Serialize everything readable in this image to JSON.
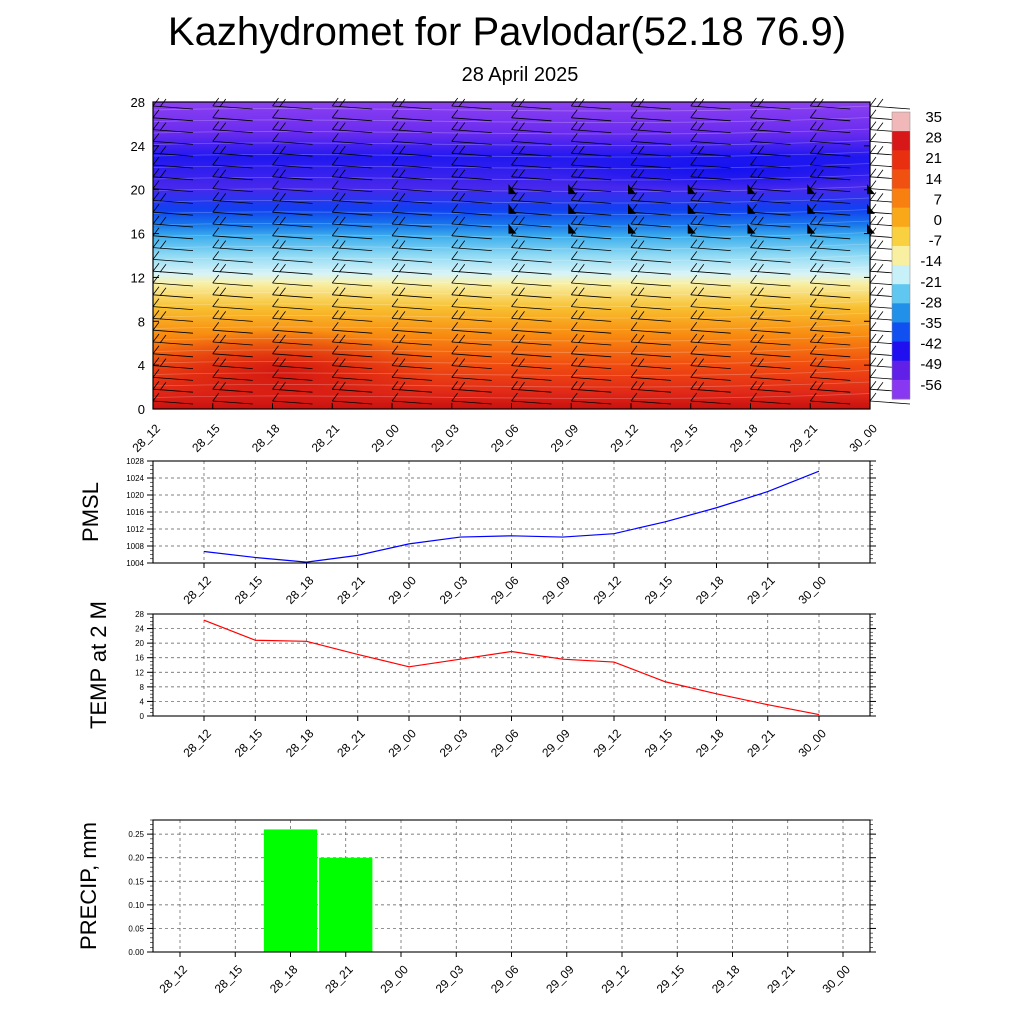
{
  "title": "Kazhydromet for Pavlodar(52.18 76.9)",
  "subtitle": "28 April 2025",
  "time_labels": [
    "28_12",
    "28_15",
    "28_18",
    "28_21",
    "29_00",
    "29_03",
    "29_06",
    "29_09",
    "29_12",
    "29_15",
    "29_18",
    "29_21",
    "30_00"
  ],
  "chart_data": [
    {
      "type": "heatmap",
      "description": "Temperature cross-section with wind barbs",
      "ylim": [
        0,
        28
      ],
      "y_ticks": [
        "0",
        "4",
        "8",
        "12",
        "16",
        "20",
        "24",
        "28"
      ],
      "x": [
        "28_12",
        "28_15",
        "28_18",
        "28_21",
        "29_00",
        "29_03",
        "29_06",
        "29_09",
        "29_12",
        "29_15",
        "29_18",
        "29_21",
        "30_00"
      ],
      "colorbar_labels": [
        "35",
        "28",
        "21",
        "14",
        "7",
        "0",
        "-7",
        "-14",
        "-21",
        "-28",
        "-35",
        "-42",
        "-49",
        "-56"
      ],
      "colorbar_colors": [
        "#f0b8b8",
        "#d81818",
        "#e83010",
        "#f05010",
        "#f88010",
        "#f8a818",
        "#f8d040",
        "#f8f0a0",
        "#c8f0f8",
        "#60c8f0",
        "#2090e8",
        "#1050f0",
        "#2010f0",
        "#6020e8",
        "#8838f0"
      ]
    },
    {
      "type": "line",
      "ylabel": "PMSL",
      "ylim": [
        1004,
        1028
      ],
      "y_ticks": [
        "1028",
        "1024",
        "1020",
        "1016",
        "1012",
        "1008",
        "1004"
      ],
      "x": [
        "28_12",
        "28_15",
        "28_18",
        "28_21",
        "29_00",
        "29_03",
        "29_06",
        "29_09",
        "29_12",
        "29_15",
        "29_18",
        "29_21",
        "30_00"
      ],
      "values": [
        1006.7,
        1005.3,
        1004.2,
        1005.8,
        1008.5,
        1010.1,
        1010.4,
        1010.1,
        1010.9,
        1013.7,
        1017.0,
        1020.8,
        1025.6
      ],
      "color": "#0000ff"
    },
    {
      "type": "line",
      "ylabel": "TEMP at 2 M",
      "ylim": [
        0,
        28
      ],
      "y_ticks": [
        "28",
        "24",
        "20",
        "16",
        "12",
        "8",
        "4",
        "0"
      ],
      "x": [
        "28_12",
        "28_15",
        "28_18",
        "28_21",
        "29_00",
        "29_03",
        "29_06",
        "29_09",
        "29_12",
        "29_15",
        "29_18",
        "29_21",
        "30_00"
      ],
      "values": [
        26.3,
        20.8,
        20.5,
        16.9,
        13.5,
        15.6,
        17.7,
        15.6,
        14.8,
        9.4,
        6.1,
        3.1,
        0.4
      ],
      "color": "#ff0000"
    },
    {
      "type": "bar",
      "ylabel": "PRECIP, mm",
      "ylim": [
        0,
        0.28
      ],
      "y_ticks": [
        "0.25",
        "0.20",
        "0.15",
        "0.10",
        "0.05",
        "0.00"
      ],
      "x": [
        "28_12",
        "28_15",
        "28_18",
        "28_21",
        "29_00",
        "29_03",
        "29_06",
        "29_09",
        "29_12",
        "29_15",
        "29_18",
        "29_21",
        "30_00"
      ],
      "values": [
        0,
        0,
        0.26,
        0.2,
        0,
        0,
        0,
        0,
        0,
        0,
        0,
        0,
        0
      ],
      "color": "#00ff00"
    }
  ]
}
